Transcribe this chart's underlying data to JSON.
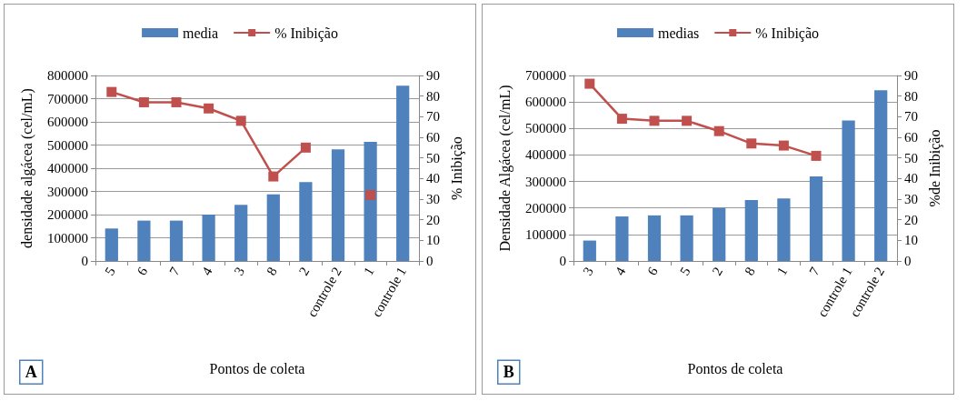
{
  "chart_data": [
    {
      "type": "bar",
      "xlabel": "Pontos de coleta",
      "ylabel": "densidade algácea (cel/mL)",
      "y2label": "% Inibição",
      "categories": [
        "5",
        "6",
        "7",
        "4",
        "3",
        "8",
        "2",
        "controle 2",
        "1",
        "controle 1"
      ],
      "series": [
        {
          "name": "media",
          "color": "#4f81bd",
          "values": [
            140000,
            174000,
            174000,
            200000,
            242000,
            287000,
            340000,
            481000,
            514000,
            756000
          ]
        },
        {
          "name": "% Inibição",
          "type": "line",
          "axis": "y2",
          "color": "#c0504d",
          "values": [
            82,
            77,
            77,
            74,
            68,
            41,
            55,
            null,
            32,
            null
          ]
        }
      ],
      "ylim": [
        0,
        800000
      ],
      "yticks": [
        0,
        100000,
        200000,
        300000,
        400000,
        500000,
        600000,
        700000,
        800000
      ],
      "y2lim": [
        0,
        90
      ],
      "y2ticks": [
        0,
        10,
        20,
        30,
        40,
        50,
        60,
        70,
        80,
        90
      ],
      "grid": "y",
      "legend": "top",
      "marker": "square",
      "annotations": [
        "A"
      ]
    },
    {
      "type": "bar",
      "xlabel": "Pontos de coleta",
      "ylabel": "Densidade Algácea (cel/mL)",
      "y2label": "%de Inibição",
      "categories": [
        "3",
        "4",
        "6",
        "5",
        "2",
        "8",
        "1",
        "7",
        "controle 1",
        "controle 2"
      ],
      "series": [
        {
          "name": "medias",
          "color": "#4f81bd",
          "values": [
            77000,
            168000,
            172000,
            172000,
            200000,
            230000,
            236000,
            319000,
            530000,
            644000
          ]
        },
        {
          "name": "% Inibição",
          "type": "line",
          "axis": "y2",
          "color": "#c0504d",
          "values": [
            86,
            69,
            68,
            68,
            63,
            57,
            56,
            51,
            null,
            null
          ]
        }
      ],
      "ylim": [
        0,
        700000
      ],
      "yticks": [
        0,
        100000,
        200000,
        300000,
        400000,
        500000,
        600000,
        700000
      ],
      "y2lim": [
        0,
        90
      ],
      "y2ticks": [
        0,
        10,
        20,
        30,
        40,
        50,
        60,
        70,
        80,
        90
      ],
      "grid": "y",
      "legend": "top",
      "marker": "square",
      "annotations": [
        "B"
      ]
    }
  ]
}
